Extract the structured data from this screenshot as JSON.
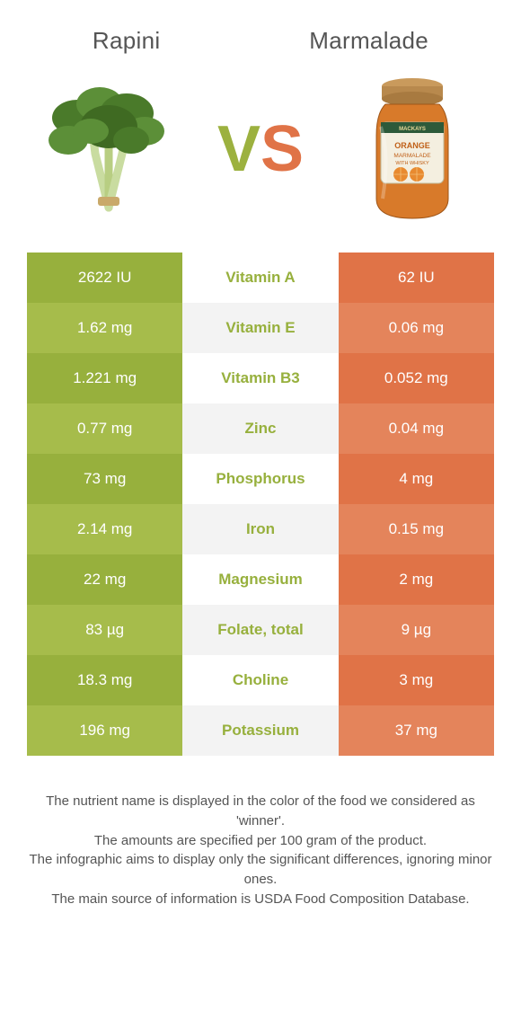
{
  "header": {
    "left": "Rapini",
    "right": "Marmalade"
  },
  "vs": {
    "v": "V",
    "s": "S"
  },
  "colors": {
    "left_base": "#97b03d",
    "left_alt": "#a6bc4b",
    "right_base": "#e07347",
    "right_alt": "#e4845b",
    "center_bg": "#ffffff",
    "center_alt": "#f3f3f3",
    "text_left": "#97b03d",
    "text_right": "#e07347"
  },
  "rows": [
    {
      "left": "2622 IU",
      "mid": "Vitamin A",
      "right": "62 IU",
      "winner": "left"
    },
    {
      "left": "1.62 mg",
      "mid": "Vitamin E",
      "right": "0.06 mg",
      "winner": "left"
    },
    {
      "left": "1.221 mg",
      "mid": "Vitamin B3",
      "right": "0.052 mg",
      "winner": "left"
    },
    {
      "left": "0.77 mg",
      "mid": "Zinc",
      "right": "0.04 mg",
      "winner": "left"
    },
    {
      "left": "73 mg",
      "mid": "Phosphorus",
      "right": "4 mg",
      "winner": "left"
    },
    {
      "left": "2.14 mg",
      "mid": "Iron",
      "right": "0.15 mg",
      "winner": "left"
    },
    {
      "left": "22 mg",
      "mid": "Magnesium",
      "right": "2 mg",
      "winner": "left"
    },
    {
      "left": "83 µg",
      "mid": "Folate, total",
      "right": "9 µg",
      "winner": "left"
    },
    {
      "left": "18.3 mg",
      "mid": "Choline",
      "right": "3 mg",
      "winner": "left"
    },
    {
      "left": "196 mg",
      "mid": "Potassium",
      "right": "37 mg",
      "winner": "left"
    }
  ],
  "notes": [
    "The nutrient name is displayed in the color of the food we considered as 'winner'.",
    "The amounts are specified per 100 gram of the product.",
    "The infographic aims to display only the significant differences, ignoring minor ones.",
    "The main source of information is USDA Food Composition Database."
  ]
}
